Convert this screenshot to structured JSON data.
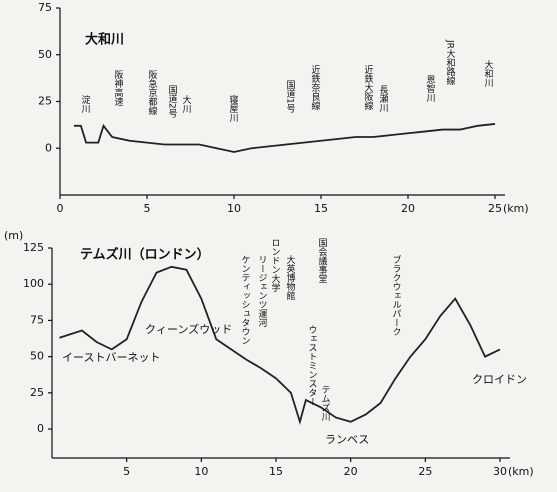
{
  "chart_data": [
    {
      "type": "line",
      "title": "大和川",
      "annotations": [
        "淀川",
        "阪神高速",
        "阪急京都線",
        "国道2号",
        "大川",
        "寝屋川",
        "国道1号",
        "近鉄奈良線",
        "近鉄大阪線",
        "長瀬川",
        "恩智川",
        "JR大和路線",
        "大和川"
      ],
      "x": [
        0.8,
        1.2,
        1.5,
        2.2,
        2.5,
        3,
        4,
        5,
        6,
        7,
        8,
        9,
        10,
        11,
        12,
        13,
        14,
        15,
        16,
        17,
        18,
        19,
        20,
        21,
        22,
        23,
        24,
        25
      ],
      "values": [
        12,
        12,
        3,
        3,
        12,
        6,
        4,
        3,
        2,
        2,
        2,
        0,
        -2,
        0,
        1,
        2,
        3,
        4,
        5,
        6,
        6,
        7,
        8,
        9,
        10,
        10,
        12,
        13
      ],
      "color": "#222",
      "xlim": [
        0,
        25
      ],
      "ylim": [
        -25,
        75
      ],
      "xticks": [
        0,
        5,
        10,
        15,
        20,
        25
      ],
      "yticks": [
        0,
        25,
        50,
        75
      ],
      "xlabel": "(km)"
    },
    {
      "type": "line",
      "title": "テムズ川（ロンドン）",
      "annotations": [
        "イーストバーネット",
        "クィーンズウッド",
        "ケンティッシュタウン",
        "リージェンツ運河",
        "ロンドン大学",
        "大英博物館",
        "国会議事堂",
        "ウェストミンスター",
        "テムズ川",
        "ランベス",
        "ブラクウェルパーク",
        "クロイドン"
      ],
      "x": [
        0.5,
        2,
        3,
        4,
        5,
        6,
        7,
        8,
        9,
        10,
        11,
        12,
        13,
        14,
        15,
        16,
        16.6,
        17,
        18,
        19,
        20,
        21,
        22,
        23,
        24,
        25,
        26,
        27,
        28,
        29,
        30
      ],
      "values": [
        63,
        68,
        60,
        55,
        62,
        88,
        108,
        112,
        110,
        90,
        62,
        55,
        48,
        42,
        35,
        25,
        5,
        20,
        15,
        8,
        5,
        10,
        18,
        35,
        50,
        62,
        78,
        90,
        72,
        50,
        55
      ],
      "color": "#222",
      "xlim": [
        0,
        30
      ],
      "ylim": [
        -20,
        125
      ],
      "xticks": [
        5,
        10,
        15,
        20,
        25,
        30
      ],
      "yticks": [
        0,
        25,
        50,
        75,
        100,
        125
      ],
      "xlabel": "(km)",
      "ylabel": "(m)"
    }
  ]
}
